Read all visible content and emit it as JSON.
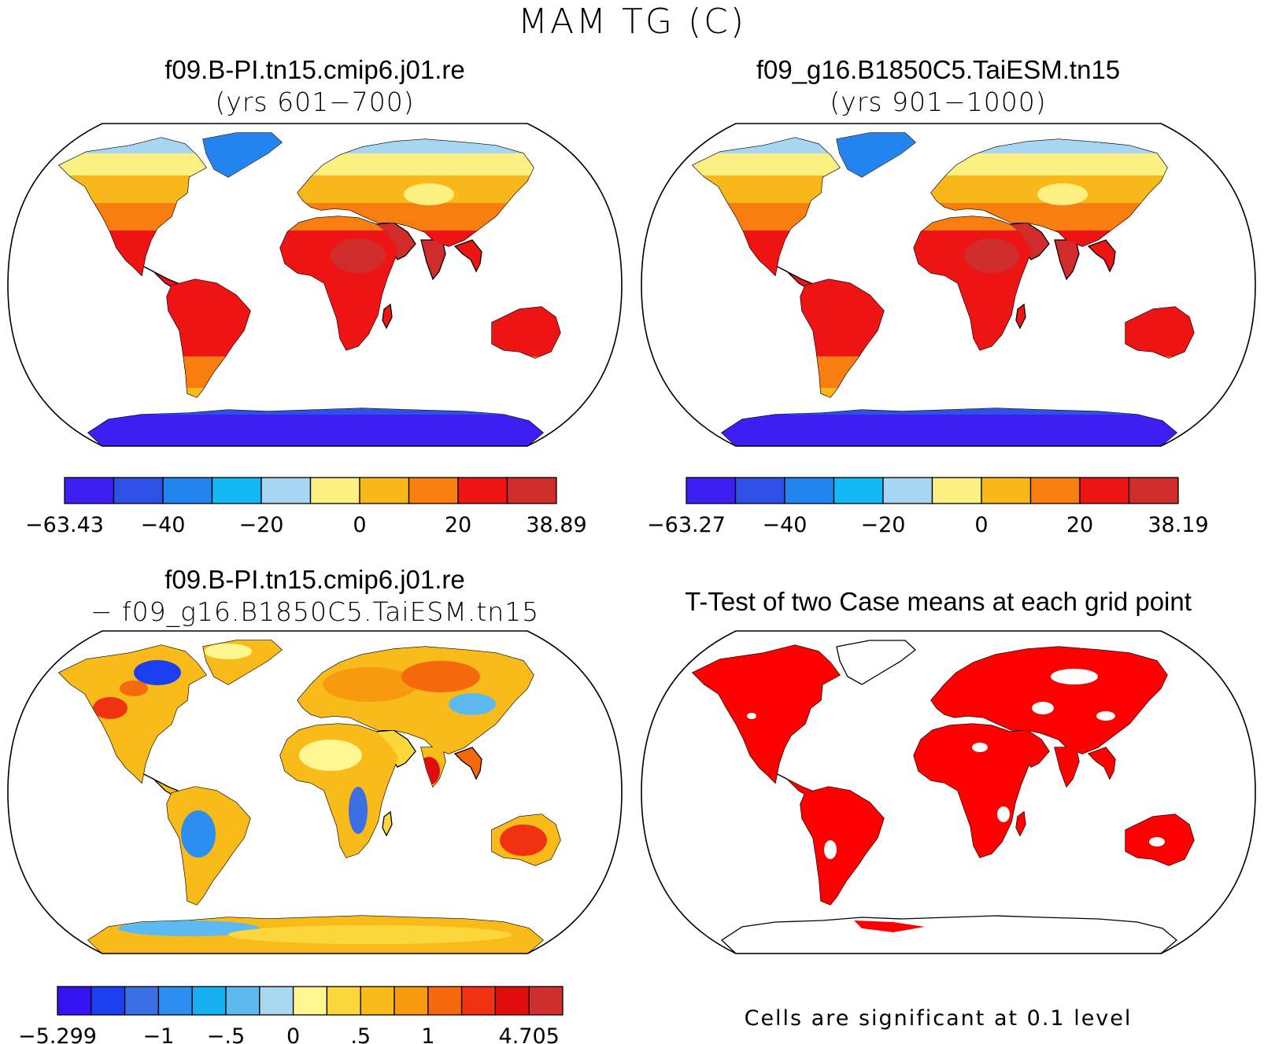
{
  "title": "MAM TG (C)",
  "panels": [
    {
      "title": "f09.B-PI.tn15.cmip6.j01.re",
      "subtitle": "(yrs 601−700)",
      "kind": "temp"
    },
    {
      "title": "f09_g16.B1850C5.TaiESM.tn15",
      "subtitle": "(yrs 901−1000)",
      "kind": "temp"
    },
    {
      "title": "f09.B-PI.tn15.cmip6.j01.re",
      "subtitle": "− f09_g16.B1850C5.TaiESM.tn15",
      "kind": "diff"
    },
    {
      "title": "T-Test of two Case means at each grid point",
      "subtitle": "",
      "kind": "ttest"
    }
  ],
  "colorbars": [
    {
      "colors": [
        "#3d1ff2",
        "#2f50e6",
        "#2484ef",
        "#14b8f5",
        "#a6d6f2",
        "#fcf082",
        "#f9b81a",
        "#f77e0f",
        "#ef1414",
        "#d12c2c"
      ],
      "tick_labels": [
        "−63.43",
        "−40",
        "−20",
        "0",
        "20",
        "38.89"
      ],
      "tick_positions": [
        0,
        2,
        4,
        6,
        8,
        10
      ]
    },
    {
      "colors": [
        "#3d1ff2",
        "#2f50e6",
        "#2484ef",
        "#14b8f5",
        "#a6d6f2",
        "#fcf082",
        "#f9b81a",
        "#f77e0f",
        "#ef1414",
        "#d12c2c"
      ],
      "tick_labels": [
        "−63.27",
        "−40",
        "−20",
        "0",
        "20",
        "38.19"
      ],
      "tick_positions": [
        0,
        2,
        4,
        6,
        8,
        10
      ]
    },
    {
      "colors": [
        "#3512f0",
        "#1a3ef0",
        "#3b6fe3",
        "#2c8ef0",
        "#16b0f0",
        "#5cbaf0",
        "#a8d8f0",
        "#fff591",
        "#fcd73b",
        "#f9bb19",
        "#f89a0e",
        "#f5680c",
        "#ef3212",
        "#e00d0d",
        "#d02f2f"
      ],
      "tick_labels": [
        "−5.299",
        "−1",
        "−.5",
        "0",
        ".5",
        "1",
        "4.705"
      ],
      "tick_positions": [
        0,
        3,
        5,
        7,
        9,
        11,
        14
      ]
    }
  ],
  "note": "Cells are significant at 0.1 level"
}
